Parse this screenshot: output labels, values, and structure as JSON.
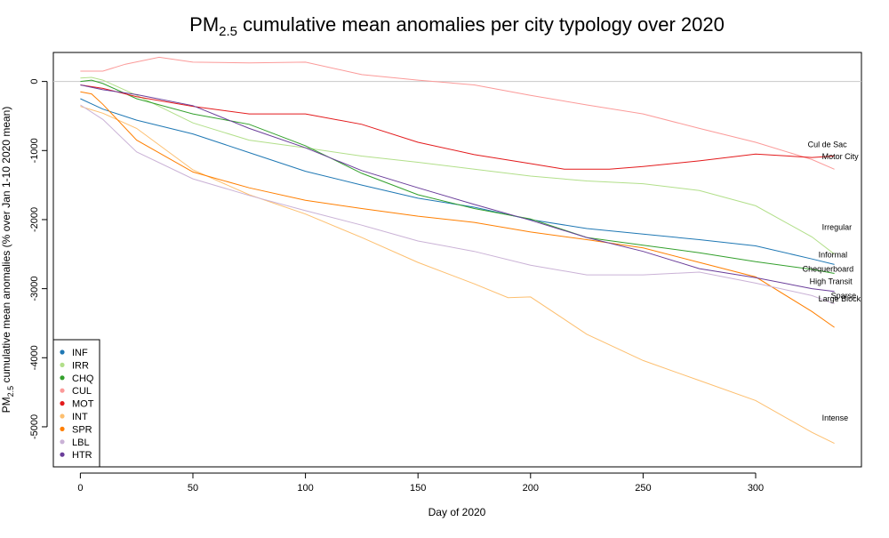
{
  "chart_data": {
    "type": "line",
    "title": {
      "main": "PM",
      "sub": "2.5",
      "rest": " cumulative mean anomalies per city typology over 2020"
    },
    "xlabel": "Day of 2020",
    "ylabel": {
      "main": "PM",
      "sub": "2.5",
      "rest": " cumulative mean anomalies (% over Jan 1-10 2020 mean)"
    },
    "xlim": [
      -12,
      347
    ],
    "ylim": [
      -5580,
      420
    ],
    "x_ticks": [
      0,
      50,
      100,
      150,
      200,
      250,
      300
    ],
    "y_ticks": [
      0,
      -1000,
      -2000,
      -3000,
      -4000,
      -5000
    ],
    "zero_line": 0,
    "legend_position": "bottom-left",
    "series": [
      {
        "name": "INF",
        "label": "Informal",
        "color": "#1f78b4",
        "x": [
          0,
          10,
          25,
          50,
          75,
          100,
          125,
          150,
          175,
          200,
          225,
          250,
          275,
          300,
          325,
          335
        ],
        "y": [
          -250,
          -400,
          -560,
          -760,
          -1030,
          -1300,
          -1500,
          -1690,
          -1820,
          -2000,
          -2130,
          -2210,
          -2290,
          -2380,
          -2570,
          -2650
        ]
      },
      {
        "name": "IRR",
        "label": "Irregular",
        "color": "#b2df8a",
        "x": [
          0,
          5,
          10,
          25,
          50,
          75,
          100,
          125,
          150,
          175,
          200,
          225,
          250,
          275,
          300,
          325,
          335
        ],
        "y": [
          50,
          60,
          20,
          -200,
          -600,
          -850,
          -960,
          -1080,
          -1170,
          -1270,
          -1370,
          -1440,
          -1480,
          -1580,
          -1800,
          -2250,
          -2500
        ]
      },
      {
        "name": "CHQ",
        "label": "Chequerboard",
        "color": "#33a02c",
        "x": [
          0,
          5,
          10,
          25,
          50,
          75,
          100,
          125,
          150,
          175,
          200,
          225,
          250,
          275,
          300,
          325,
          335
        ],
        "y": [
          0,
          20,
          -30,
          -250,
          -470,
          -620,
          -930,
          -1330,
          -1640,
          -1840,
          -1990,
          -2260,
          -2370,
          -2480,
          -2610,
          -2720,
          -2780
        ]
      },
      {
        "name": "CUL",
        "label": "Cul de Sac",
        "color": "#fb9a99",
        "x": [
          0,
          10,
          20,
          35,
          50,
          75,
          100,
          125,
          150,
          175,
          200,
          225,
          250,
          275,
          300,
          325,
          335
        ],
        "y": [
          150,
          150,
          250,
          350,
          280,
          270,
          280,
          100,
          20,
          -50,
          -200,
          -340,
          -470,
          -680,
          -880,
          -1130,
          -1270
        ]
      },
      {
        "name": "MOT",
        "label": "Motor City",
        "color": "#e31a1c",
        "x": [
          0,
          10,
          25,
          50,
          75,
          100,
          125,
          150,
          175,
          200,
          215,
          235,
          250,
          275,
          300,
          325,
          335
        ],
        "y": [
          -50,
          -100,
          -220,
          -360,
          -470,
          -470,
          -620,
          -880,
          -1060,
          -1190,
          -1270,
          -1270,
          -1230,
          -1150,
          -1050,
          -1100,
          -1080
        ]
      },
      {
        "name": "INT",
        "label": "Intense",
        "color": "#fdbf6f",
        "x": [
          0,
          10,
          25,
          50,
          75,
          100,
          125,
          150,
          175,
          190,
          200,
          225,
          250,
          275,
          300,
          325,
          335
        ],
        "y": [
          -360,
          -460,
          -680,
          -1280,
          -1640,
          -1920,
          -2260,
          -2620,
          -2930,
          -3130,
          -3120,
          -3660,
          -4040,
          -4330,
          -4620,
          -5080,
          -5240
        ]
      },
      {
        "name": "SPR",
        "label": "Sparse",
        "color": "#ff7f00",
        "x": [
          0,
          5,
          10,
          25,
          50,
          75,
          100,
          125,
          150,
          175,
          200,
          225,
          250,
          275,
          300,
          325,
          335
        ],
        "y": [
          -150,
          -180,
          -330,
          -850,
          -1310,
          -1540,
          -1720,
          -1840,
          -1950,
          -2040,
          -2180,
          -2290,
          -2410,
          -2620,
          -2830,
          -3330,
          -3560
        ]
      },
      {
        "name": "LBL",
        "label": "Large Block",
        "color": "#cab2d6",
        "x": [
          0,
          10,
          25,
          50,
          75,
          100,
          125,
          150,
          175,
          200,
          225,
          250,
          275,
          300,
          325,
          335
        ],
        "y": [
          -340,
          -550,
          -1020,
          -1410,
          -1650,
          -1870,
          -2080,
          -2310,
          -2460,
          -2660,
          -2800,
          -2800,
          -2760,
          -2920,
          -3100,
          -3220
        ]
      },
      {
        "name": "HTR",
        "label": "High Transit",
        "color": "#6a3d9a",
        "x": [
          0,
          10,
          25,
          50,
          75,
          100,
          125,
          150,
          175,
          200,
          225,
          250,
          275,
          300,
          325,
          335
        ],
        "y": [
          -50,
          -120,
          -190,
          -350,
          -680,
          -960,
          -1290,
          -1540,
          -1780,
          -2010,
          -2260,
          -2460,
          -2710,
          -2840,
          -3000,
          -3040
        ]
      }
    ]
  }
}
